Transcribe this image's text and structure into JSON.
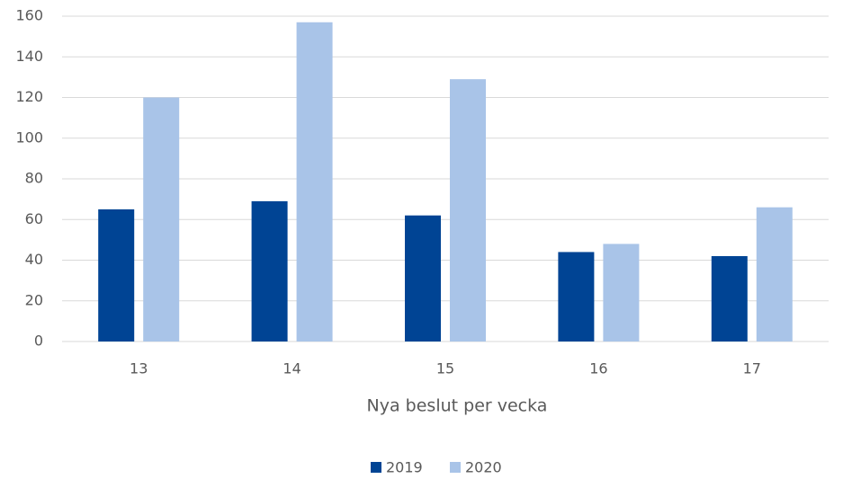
{
  "chart_data": {
    "type": "bar",
    "x_label": "Nya beslut per vecka",
    "categories": [
      "13",
      "14",
      "15",
      "16",
      "17"
    ],
    "series": [
      {
        "name": "2019",
        "color": "#004494",
        "values": [
          65,
          69,
          62,
          44,
          42
        ]
      },
      {
        "name": "2020",
        "color": "#a9c4e8",
        "values": [
          120,
          157,
          129,
          48,
          66
        ]
      }
    ],
    "ylim": [
      0,
      160
    ],
    "yticks": [
      0,
      20,
      40,
      60,
      80,
      100,
      120,
      140,
      160
    ],
    "grid": true,
    "legend": "bottom"
  }
}
